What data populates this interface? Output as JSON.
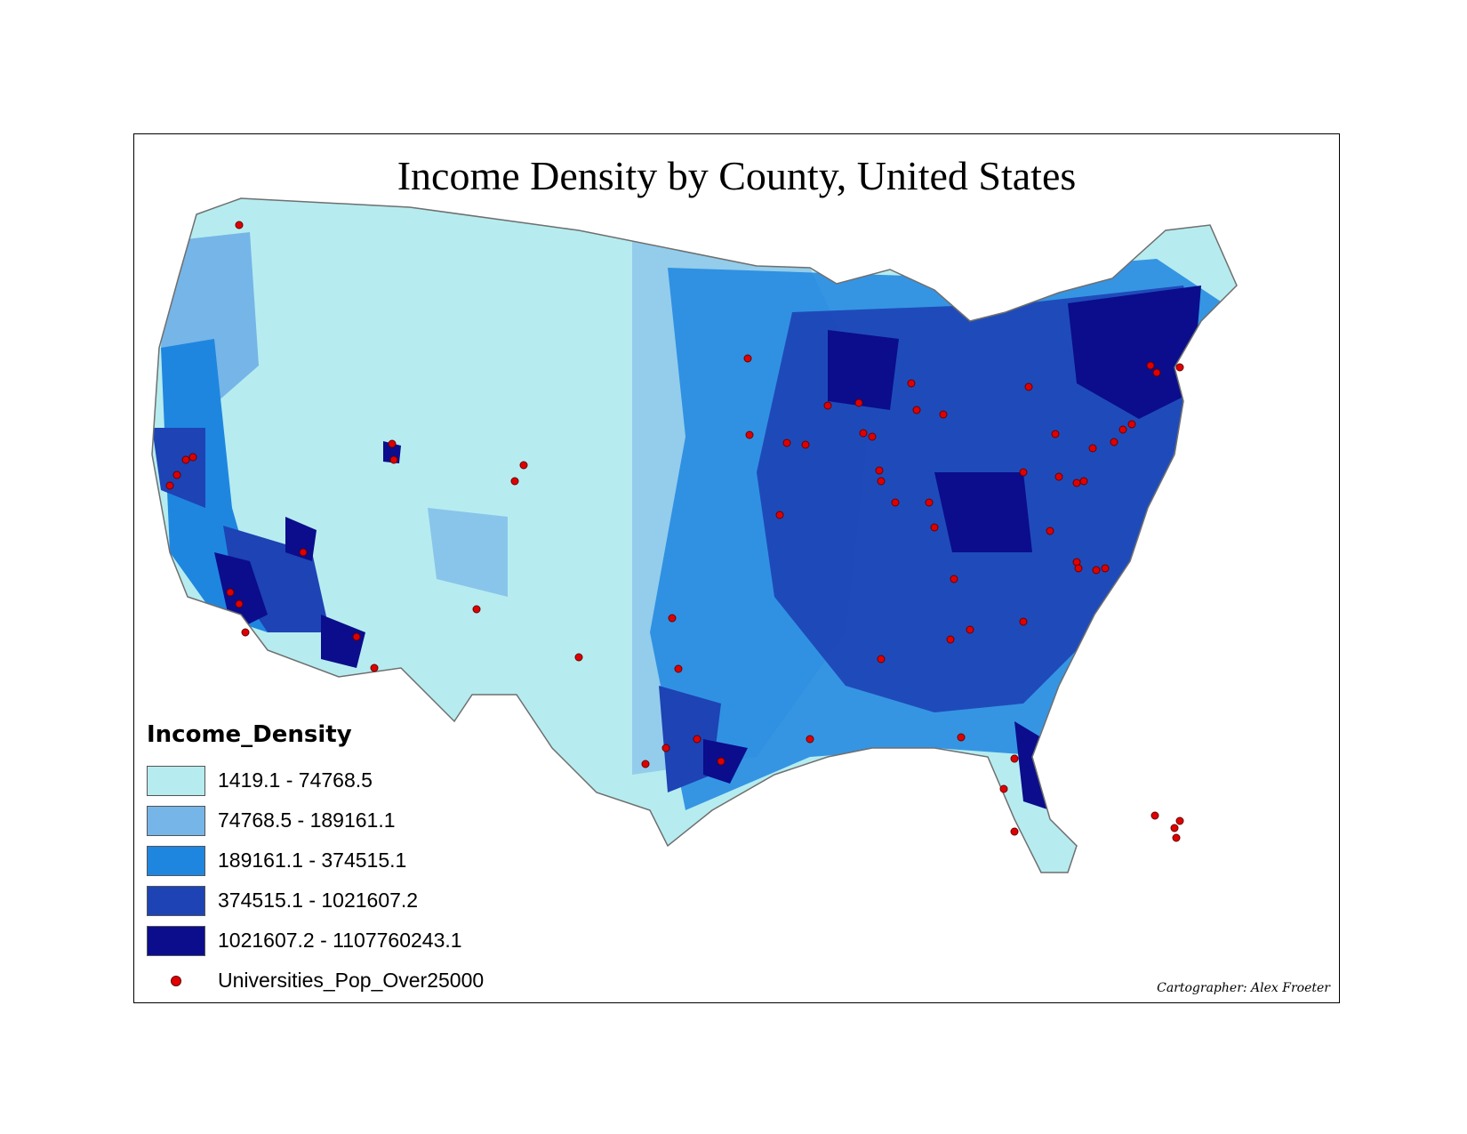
{
  "title": "Income Density by County, United States",
  "legend": {
    "title": "Income_Density",
    "classes": [
      {
        "label": "1419.1 - 74768.5",
        "color": "#b6ecef"
      },
      {
        "label": "74768.5 - 189161.1",
        "color": "#76b5e8"
      },
      {
        "label": "189161.1 - 374515.1",
        "color": "#1f86e0"
      },
      {
        "label": "374515.1 - 1021607.2",
        "color": "#1d43b5"
      },
      {
        "label": "1021607.2 - 1107760243.1",
        "color": "#0b0d8c"
      }
    ],
    "points_label": "Universities_Pop_Over25000",
    "points_color": "#e00000"
  },
  "credit": "Cartographer: Alex Froeter"
}
